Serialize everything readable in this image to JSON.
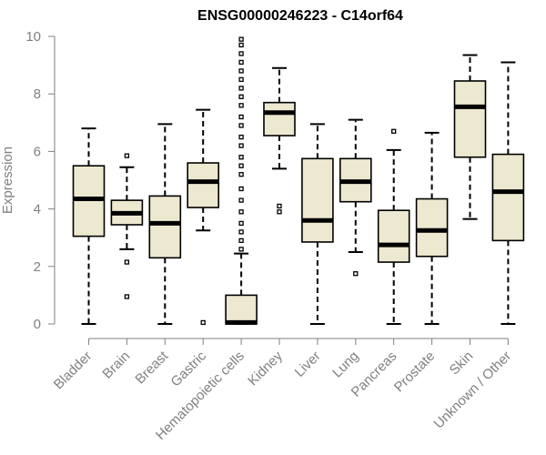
{
  "chart_data": {
    "type": "boxplot",
    "title": "ENSG00000246223 - C14orf64",
    "xlabel": "",
    "ylabel": "Expression",
    "ylim": [
      0,
      10
    ],
    "yticks": [
      0,
      2,
      4,
      6,
      8,
      10
    ],
    "colors": {
      "box_fill": "#EDE8D0",
      "stroke": "#000000",
      "axis": "#808080"
    },
    "categories": [
      "Bladder",
      "Brain",
      "Breast",
      "Gastric",
      "Hematopoietic cells",
      "Kidney",
      "Liver",
      "Lung",
      "Pancreas",
      "Prostate",
      "Skin",
      "Unknown / Other"
    ],
    "boxes": [
      {
        "whislo": 0.0,
        "q1": 3.05,
        "med": 4.35,
        "q3": 5.5,
        "whishi": 6.8,
        "fliers": []
      },
      {
        "whislo": 2.6,
        "q1": 3.45,
        "med": 3.85,
        "q3": 4.3,
        "whishi": 5.45,
        "fliers": [
          5.85,
          2.15,
          0.95
        ]
      },
      {
        "whislo": 0.0,
        "q1": 2.3,
        "med": 3.5,
        "q3": 4.45,
        "whishi": 6.95,
        "fliers": []
      },
      {
        "whislo": 3.25,
        "q1": 4.05,
        "med": 4.95,
        "q3": 5.6,
        "whishi": 7.45,
        "fliers": [
          0.05
        ]
      },
      {
        "whislo": 0.0,
        "q1": 0.0,
        "med": 0.05,
        "q3": 1.0,
        "whishi": 2.45,
        "fliers": [
          2.6,
          2.9,
          3.2,
          3.5,
          3.9,
          4.3,
          4.7,
          5.2,
          5.5,
          5.8,
          6.2,
          6.5,
          6.9,
          7.2,
          7.6,
          7.9,
          8.2,
          8.5,
          8.8,
          9.1,
          9.4,
          9.7,
          9.9
        ]
      },
      {
        "whislo": 5.4,
        "q1": 6.55,
        "med": 7.35,
        "q3": 7.7,
        "whishi": 8.9,
        "fliers": [
          4.1,
          3.9
        ]
      },
      {
        "whislo": 0.0,
        "q1": 2.85,
        "med": 3.6,
        "q3": 5.75,
        "whishi": 6.95,
        "fliers": []
      },
      {
        "whislo": 2.5,
        "q1": 4.25,
        "med": 4.95,
        "q3": 5.75,
        "whishi": 7.1,
        "fliers": [
          1.75
        ]
      },
      {
        "whislo": 0.0,
        "q1": 2.15,
        "med": 2.75,
        "q3": 3.95,
        "whishi": 6.05,
        "fliers": [
          6.7
        ]
      },
      {
        "whislo": 0.0,
        "q1": 2.35,
        "med": 3.25,
        "q3": 4.35,
        "whishi": 6.65,
        "fliers": []
      },
      {
        "whislo": 3.65,
        "q1": 5.8,
        "med": 7.55,
        "q3": 8.45,
        "whishi": 9.35,
        "fliers": []
      },
      {
        "whislo": 0.0,
        "q1": 2.9,
        "med": 4.6,
        "q3": 5.9,
        "whishi": 9.1,
        "fliers": []
      }
    ]
  }
}
